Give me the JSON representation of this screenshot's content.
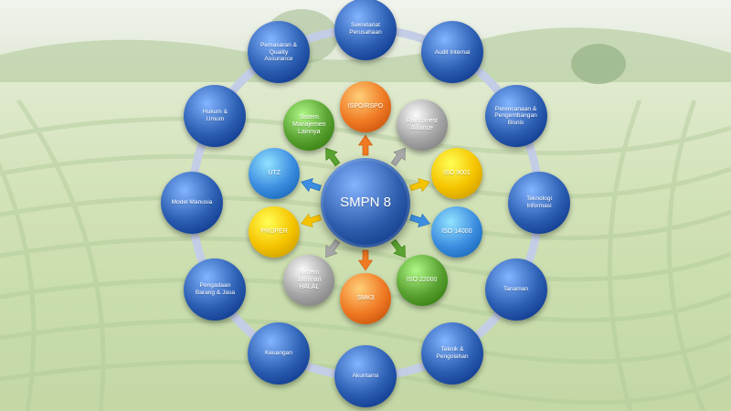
{
  "diagram": {
    "center": {
      "label": "SMPN 8",
      "color": "#2f5fae"
    },
    "outer_ring": [
      {
        "label": "Sekretariat\nPerusahaan"
      },
      {
        "label": "Audit Internal"
      },
      {
        "label": "Perencanaan &\nPengembangan\nBisnis"
      },
      {
        "label": "Teknologi\nInformasi"
      },
      {
        "label": "Tanaman"
      },
      {
        "label": "Teknik &\nPengolahan"
      },
      {
        "label": "Akuntansi"
      },
      {
        "label": "Keuangan"
      },
      {
        "label": "Pengadaan\nBarang & Jasa"
      },
      {
        "label": "Model Manusia"
      },
      {
        "label": "Hukum &\nUmum"
      },
      {
        "label": "Pemasaran &\nQuality\nAssurance"
      }
    ],
    "outer_color": "#2d5fb3",
    "inner_ring": [
      {
        "label": "ISPO/RSPO",
        "color": "#f07a24"
      },
      {
        "label": "Rainforrest\nAlliance",
        "color": "#a6a6a6"
      },
      {
        "label": "ISO 9001",
        "color": "#f5c400"
      },
      {
        "label": "ISO 14000",
        "color": "#3d8ee0"
      },
      {
        "label": "ISO 22000",
        "color": "#5aa332"
      },
      {
        "label": "SMK3",
        "color": "#f07a24"
      },
      {
        "label": "Sistem\nJaminan\nHALAL",
        "color": "#a6a6a6"
      },
      {
        "label": "PROPER",
        "color": "#f5c400"
      },
      {
        "label": "UTZ",
        "color": "#3d8ee0"
      },
      {
        "label": "Sistem\nManajemen\nLainnya",
        "color": "#5aa332"
      }
    ],
    "ring_color": "#c4cde6"
  }
}
